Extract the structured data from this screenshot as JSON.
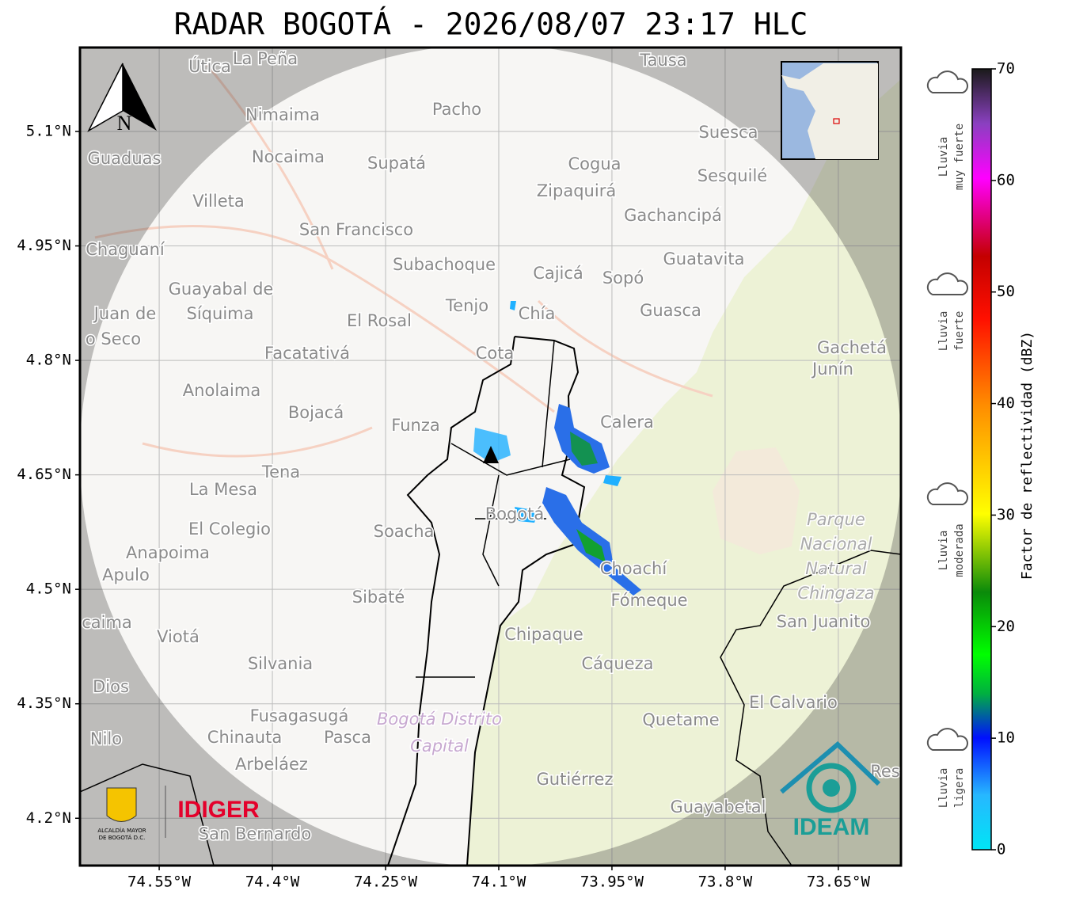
{
  "title": "RADAR BOGOTÁ - 2026/08/07 23:17 HLC",
  "map": {
    "lon_range": [
      -74.655,
      -73.567
    ],
    "lat_range": [
      4.138,
      5.21
    ],
    "lon_ticks": [
      {
        "value": -74.55,
        "label": "74.55°W"
      },
      {
        "value": -74.4,
        "label": "74.4°W"
      },
      {
        "value": -74.25,
        "label": "74.25°W"
      },
      {
        "value": -74.1,
        "label": "74.1°W"
      },
      {
        "value": -73.95,
        "label": "73.95°W"
      },
      {
        "value": -73.8,
        "label": "73.8°W"
      },
      {
        "value": -73.65,
        "label": "73.65°W"
      }
    ],
    "lat_ticks": [
      {
        "value": 5.1,
        "label": "5.1°N"
      },
      {
        "value": 4.95,
        "label": "4.95°N"
      },
      {
        "value": 4.8,
        "label": "4.8°N"
      },
      {
        "value": 4.65,
        "label": "4.65°N"
      },
      {
        "value": 4.5,
        "label": "4.5°N"
      },
      {
        "value": 4.35,
        "label": "4.35°N"
      },
      {
        "value": 4.2,
        "label": "4.2°N"
      }
    ],
    "north_label": "N",
    "places": [
      "Útica",
      "La Peña",
      "Tausa",
      "Pacho",
      "Nimaima",
      "Guaduas",
      "Nocaima",
      "Supatá",
      "Cogua",
      "Suesca",
      "Sesquilé",
      "Zipaquirá",
      "Villeta",
      "Gachancipá",
      "San Francisco",
      "Chaguaní",
      "Guatavita",
      "Subachoque",
      "Cajicá",
      "Sopó",
      "Guayabal de",
      "Síquima",
      "Juan de",
      "o Seco",
      "Tenjo",
      "Chía",
      "El Rosal",
      "Guasca",
      "Facatativá",
      "Cota",
      "Gachetá",
      "Junín",
      "Anolaima",
      "Bojacá",
      "Funza",
      "Calera",
      "Tena",
      "La Mesa",
      "Bogotá",
      "Soacha",
      "El Colegio",
      "Anapoima",
      "Apulo",
      "Parque",
      "Nacional",
      "Natural",
      "Chingaza",
      "Choachí",
      "Fómeque",
      "San Juanito",
      "Sibaté",
      "caima",
      "Viotá",
      "Chipaque",
      "Silvania",
      "Cáqueza",
      "Dios",
      "El Calvario",
      "Fusagasugá",
      "Bogotá Distrito",
      "Capital",
      "Quetame",
      "Nilo",
      "Chinauta",
      "Pasca",
      "Arbeláez",
      "Gutiérrez",
      "Res",
      "Guayabetal",
      "San Bernardo"
    ]
  },
  "colorbar": {
    "label": "Factor de reflectividad (dBZ)",
    "range": [
      0,
      70
    ],
    "ticks": [
      0,
      10,
      20,
      30,
      40,
      50,
      60,
      70
    ]
  },
  "rain_classes": [
    {
      "lines": [
        "Lluvia",
        "muy fuerte"
      ]
    },
    {
      "lines": [
        "Lluvia",
        "fuerte"
      ]
    },
    {
      "lines": [
        "Lluvia",
        "moderada"
      ]
    },
    {
      "lines": [
        "Lluvia",
        "ligera"
      ]
    }
  ],
  "logos": {
    "alcaldia": [
      "ALCALDÍA MAYOR",
      "DE BOGOTÁ D.C."
    ],
    "idiger": "IDIGER",
    "ideam": "IDEAM"
  }
}
